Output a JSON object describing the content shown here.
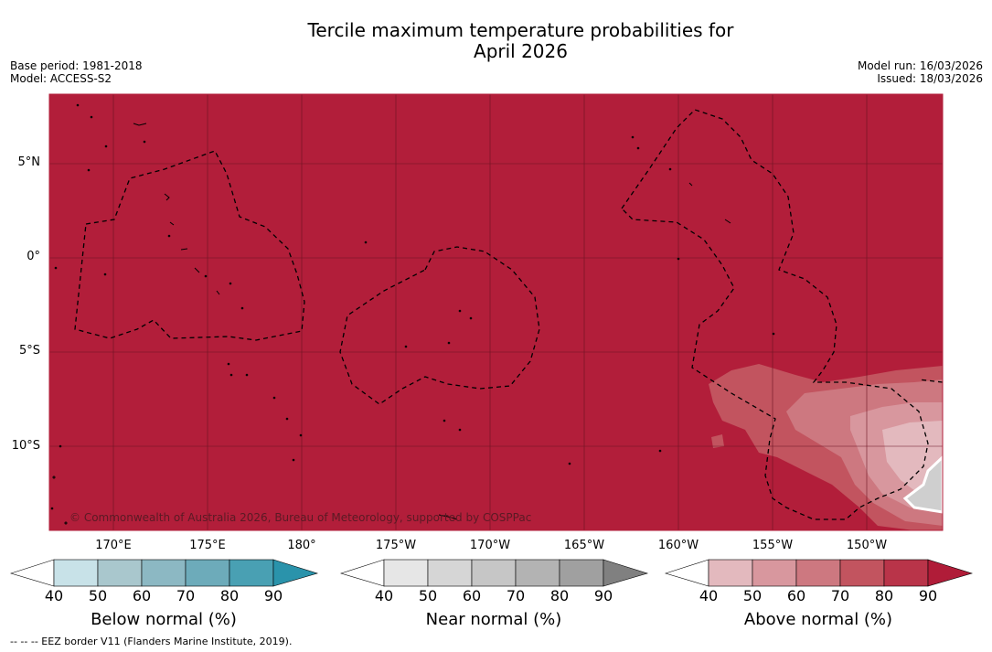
{
  "title_line1": "Tercile maximum temperature probabilities for",
  "title_line2": "April 2026",
  "meta_left": [
    "Base period: 1981-2018",
    "Model: ACCESS-S2"
  ],
  "meta_right": [
    "Model run: 16/03/2026",
    "Issued: 18/03/2026"
  ],
  "lat_labels": [
    "5°N",
    "0°",
    "5°S",
    "10°S"
  ],
  "lon_labels": [
    "170°E",
    "175°E",
    "180°",
    "175°W",
    "170°W",
    "165°W",
    "160°W",
    "155°W",
    "150°W"
  ],
  "copyright": "© Commonwealth of Australia 2026, Bureau of Meteorology, supported by COSPPac",
  "footnote": "--  --  -- EEZ border V11 (Flanders Marine Institute, 2019).",
  "colorbars": [
    {
      "title": "Below normal (%)",
      "ticks": [
        "40",
        "50",
        "60",
        "70",
        "80",
        "90"
      ],
      "colors": [
        "#ffffff",
        "#c8e2e8",
        "#a9c7cd",
        "#8cb8c3",
        "#6dabba",
        "#49a0b3",
        "#2a93ab"
      ]
    },
    {
      "title": "Near normal (%)",
      "ticks": [
        "40",
        "50",
        "60",
        "70",
        "80",
        "90"
      ],
      "colors": [
        "#ffffff",
        "#e6e6e6",
        "#d6d6d6",
        "#c6c6c6",
        "#b3b3b3",
        "#a0a0a0",
        "#808080"
      ]
    },
    {
      "title": "Above normal (%)",
      "ticks": [
        "40",
        "50",
        "60",
        "70",
        "80",
        "90"
      ],
      "colors": [
        "#ffffff",
        "#e3b9be",
        "#d8979e",
        "#cd7880",
        "#c2545f",
        "#b93449",
        "#b01c38"
      ]
    }
  ],
  "colors": {
    "map_fill": "#b21e3a",
    "grid": "#6b1322"
  }
}
